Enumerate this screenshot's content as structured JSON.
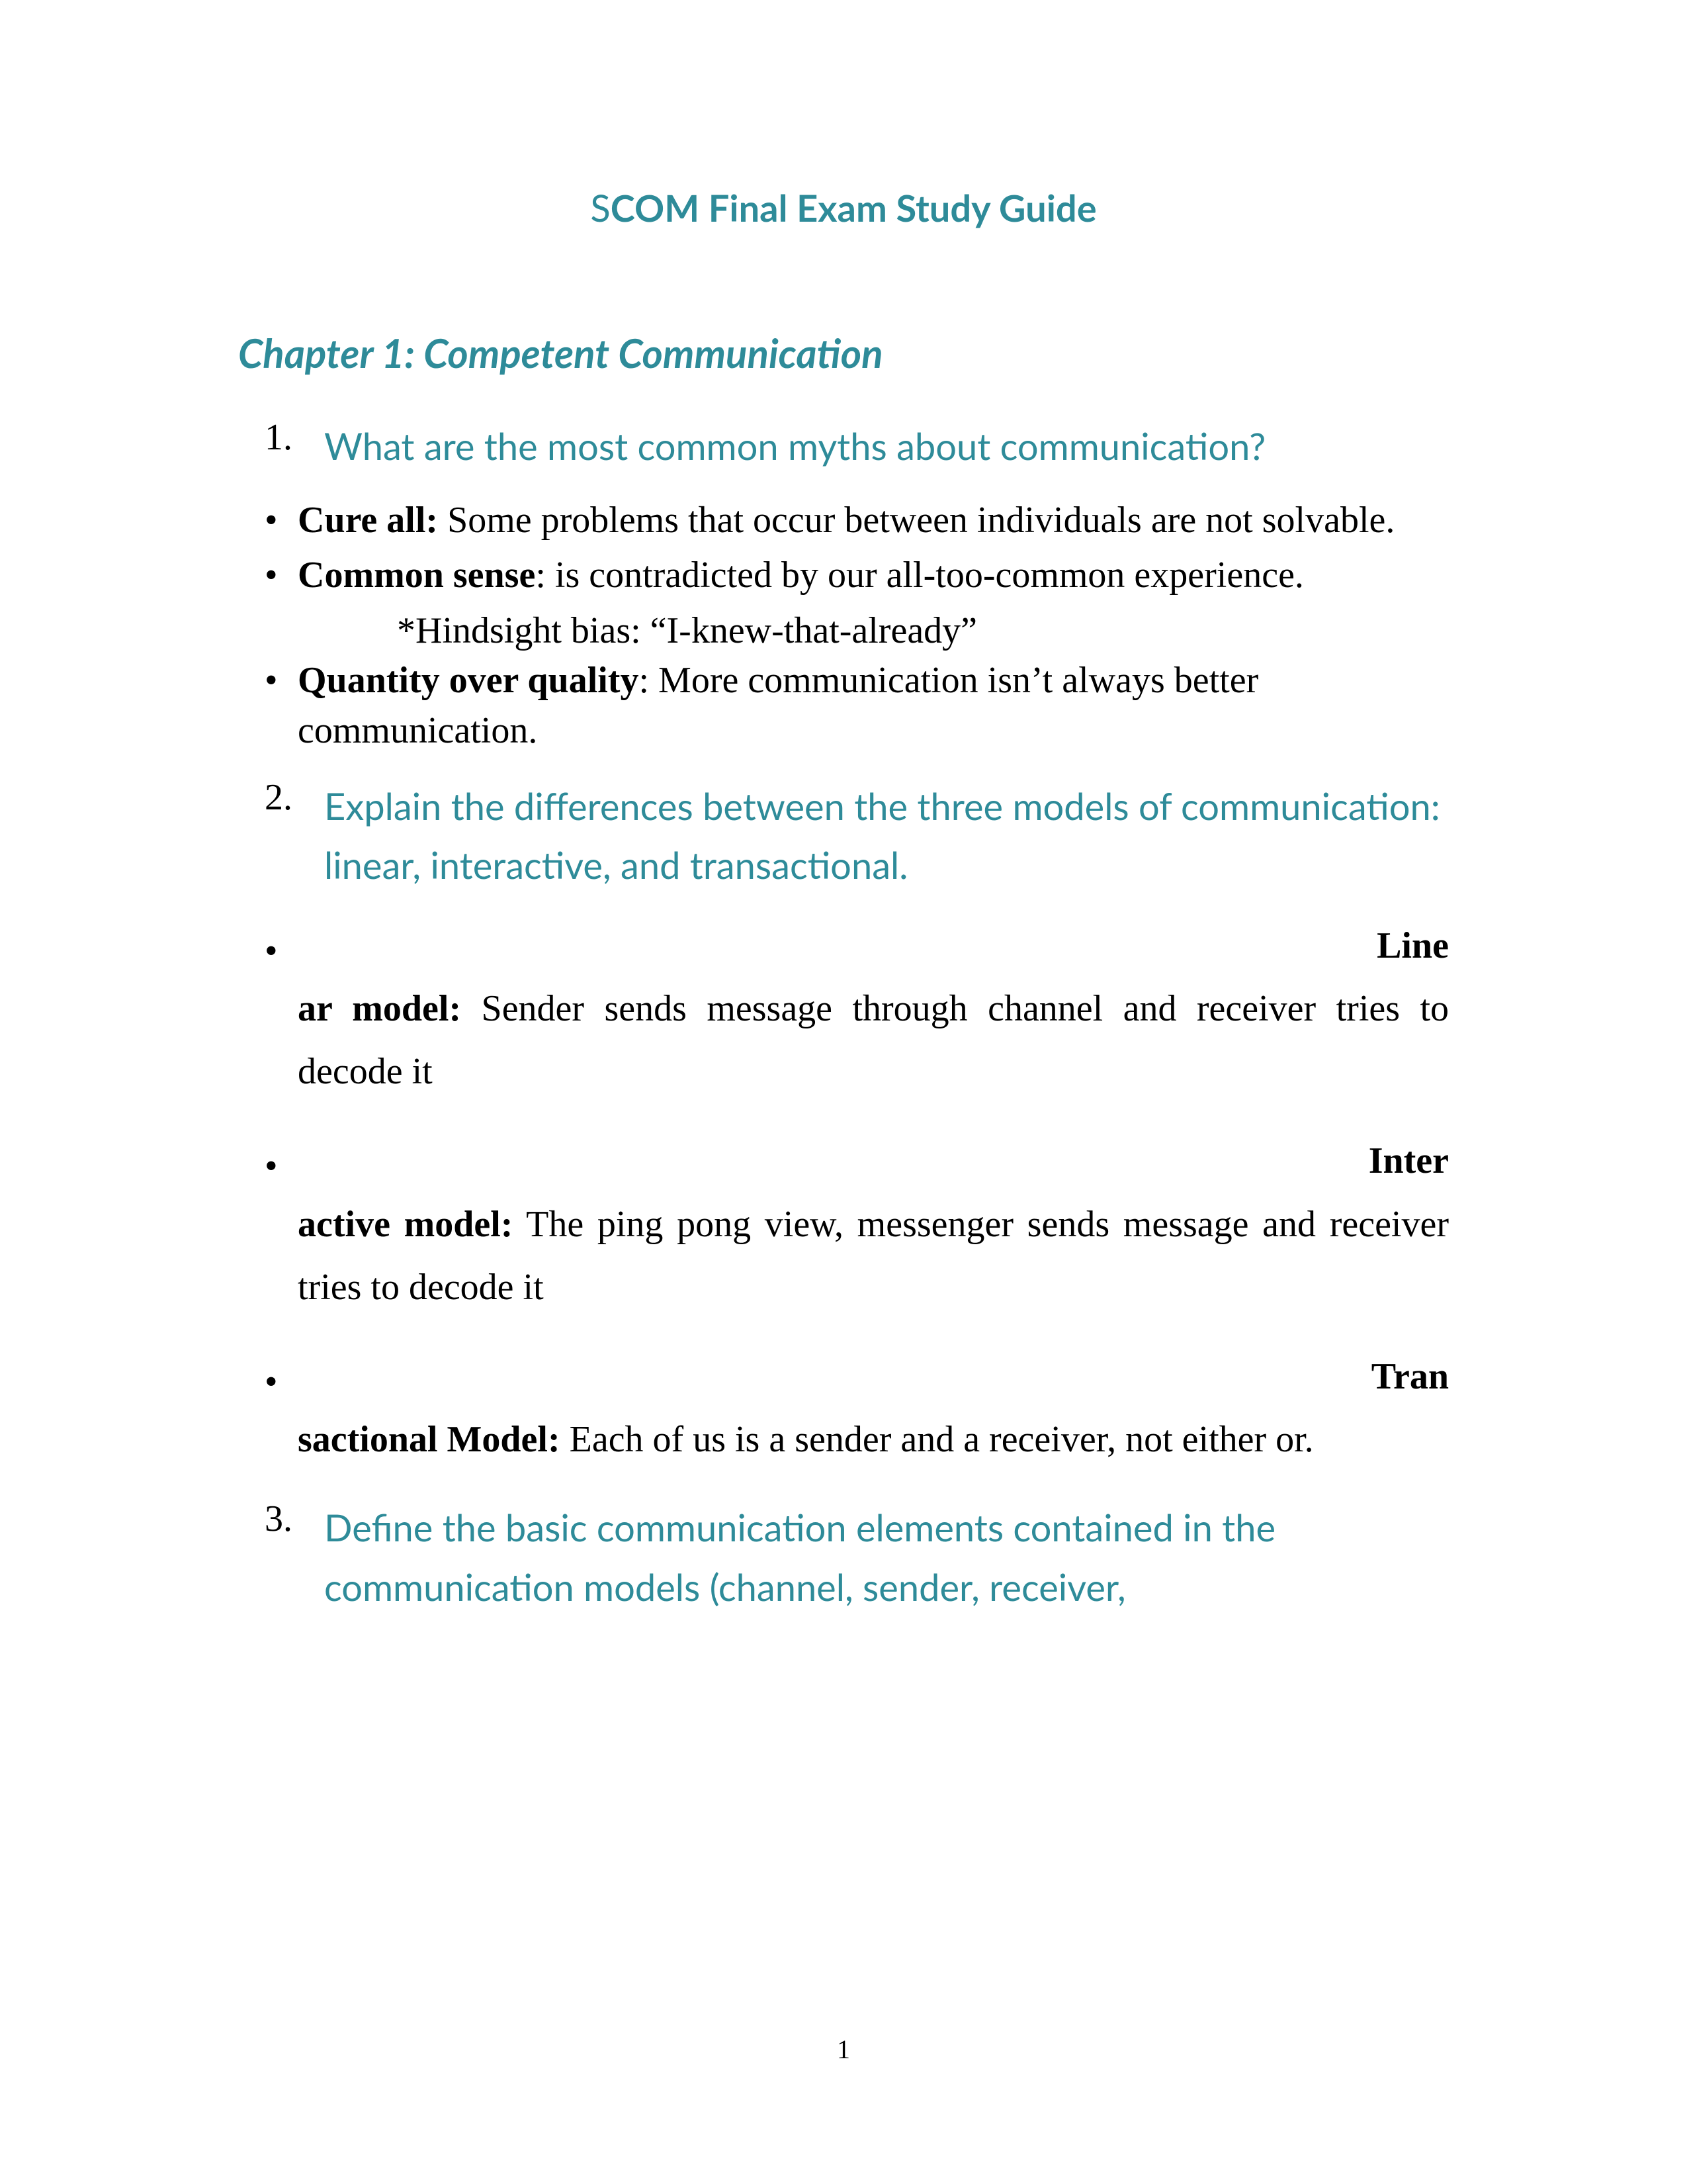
{
  "title": {
    "first_letter": "S",
    "rest": "COM Final Exam Study Guide"
  },
  "chapter_heading": "Chapter 1: Competent Communication",
  "q1": {
    "num": "1.",
    "text": "What are the most common myths about communication?"
  },
  "bullets1": {
    "a_bold": "Cure all:",
    "a_rest": " Some problems that occur between individuals are not solvable.",
    "b_bold": "Common sense",
    "b_rest": ": is contradicted by our all-too-common experience.",
    "b_sub": "*Hindsight bias:  “I-knew-that-already”",
    "c_bold": "Quantity over quality",
    "c_rest": ": More communication isn’t always better communication."
  },
  "q2": {
    "num": "2.",
    "text": "Explain the differences between the three models of communication: linear, interactive, and transactional."
  },
  "models": {
    "a_right": "Line",
    "a_bold": "ar model:",
    "a_rest": " Sender sends message through channel and receiver tries to decode it",
    "b_right": "Inter",
    "b_bold": "active model:",
    "b_rest": " The ping pong view, messenger sends message and receiver tries to decode it",
    "c_right": "Tran",
    "c_bold": "sactional Model:",
    "c_rest": " Each of us is a sender and a receiver, not either or."
  },
  "q3": {
    "num": "3.",
    "text": "Define the basic communication elements contained in the communication models (channel, sender, receiver,"
  },
  "page_number": "1",
  "colors": {
    "teal": "#2e8b99",
    "black": "#000000",
    "background": "#ffffff"
  }
}
